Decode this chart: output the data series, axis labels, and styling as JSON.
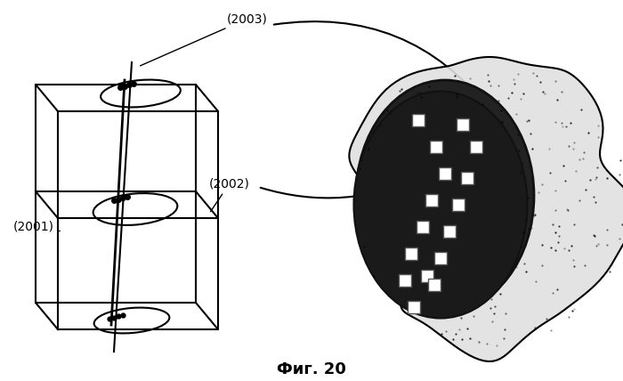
{
  "title": "",
  "caption": "Фиг. 20",
  "caption_fontsize": 13,
  "bg_color": "#ffffff",
  "label_2001": "(2001)",
  "label_2002": "(2002)",
  "label_2003": "(2003)",
  "box_color": "#000000",
  "plane_color": "#cccccc",
  "ellipse_color": "#000000",
  "dot_color": "#000000",
  "line_color": "#000000",
  "arrow_color": "#000000"
}
